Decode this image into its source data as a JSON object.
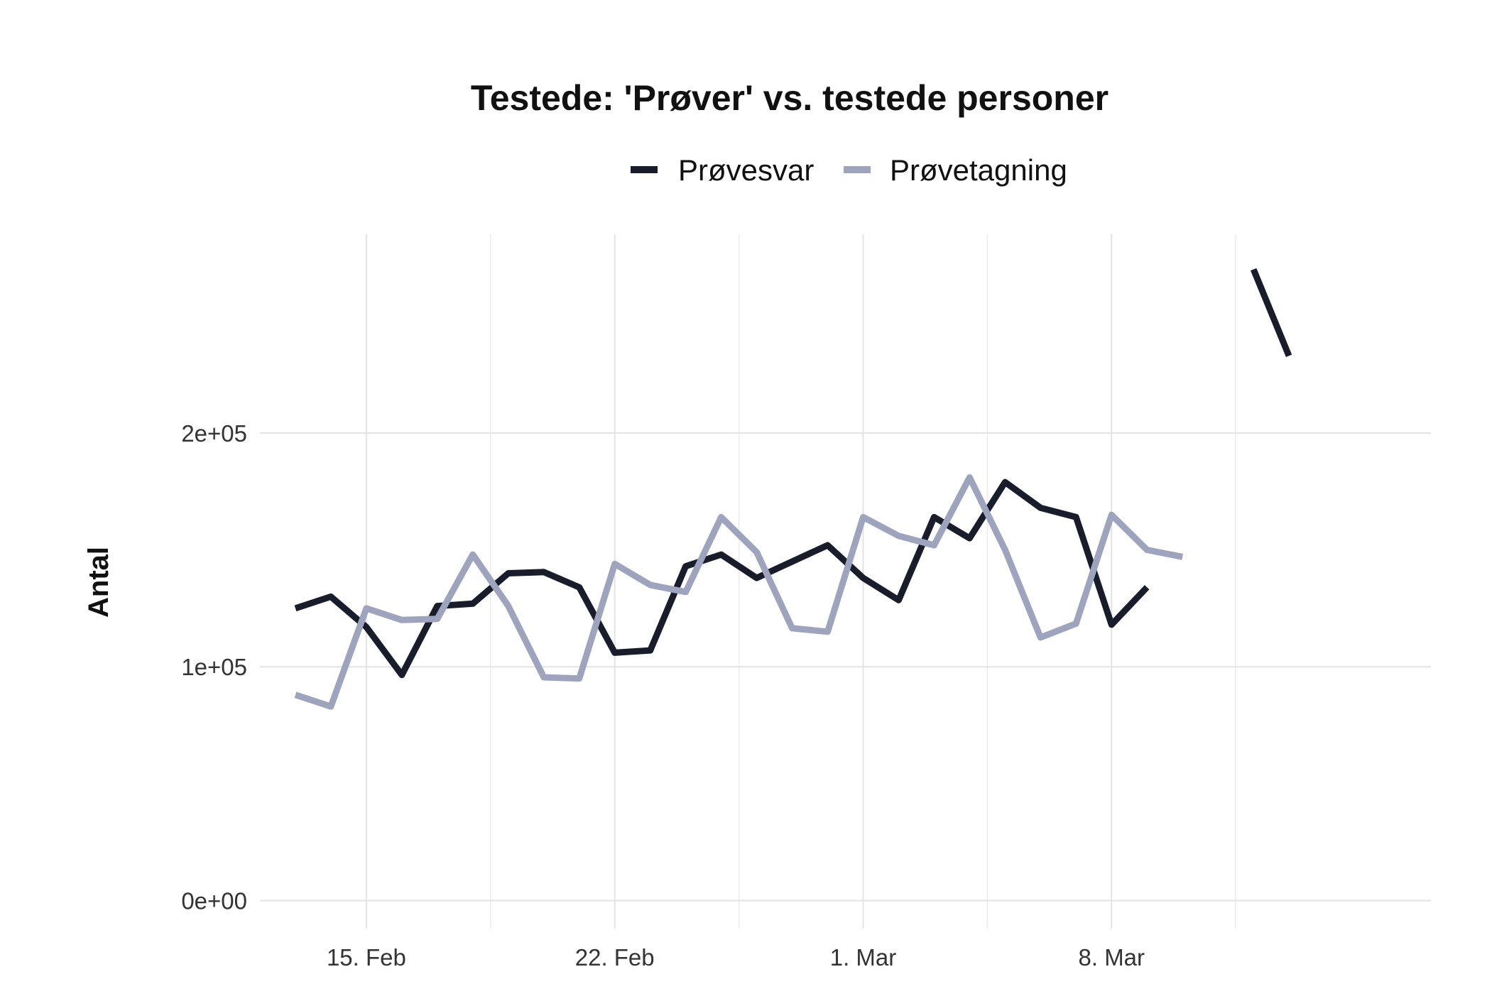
{
  "chart_data": {
    "type": "line",
    "title": "Testede: 'Prøver' vs. testede personer",
    "xlabel": "",
    "ylabel": "Antal",
    "x_type": "date",
    "x_ticks": [
      "2021-02-15",
      "2021-02-22",
      "2021-03-01",
      "2021-03-08"
    ],
    "x_tick_labels": [
      "15. Feb",
      "22. Feb",
      "1. Mar",
      "8. Mar"
    ],
    "xlim": [
      "2021-02-12",
      "2021-03-17"
    ],
    "y_ticks": [
      0,
      100000,
      200000
    ],
    "y_tick_labels": [
      "0e+00",
      "1e+05",
      "2e+05"
    ],
    "ylim": [
      -12000,
      285000
    ],
    "grid": true,
    "legend_position": "top",
    "series": [
      {
        "name": "Prøvesvar",
        "color": "#181c2b",
        "points": [
          {
            "x": "2021-02-13",
            "y": 125000
          },
          {
            "x": "2021-02-14",
            "y": 130000
          },
          {
            "x": "2021-02-15",
            "y": 117000
          },
          {
            "x": "2021-02-16",
            "y": 96500
          },
          {
            "x": "2021-02-17",
            "y": 126000
          },
          {
            "x": "2021-02-18",
            "y": 127000
          },
          {
            "x": "2021-02-19",
            "y": 140000
          },
          {
            "x": "2021-02-20",
            "y": 140500
          },
          {
            "x": "2021-02-21",
            "y": 134000
          },
          {
            "x": "2021-02-22",
            "y": 106000
          },
          {
            "x": "2021-02-23",
            "y": 107000
          },
          {
            "x": "2021-02-24",
            "y": 143000
          },
          {
            "x": "2021-02-25",
            "y": 148000
          },
          {
            "x": "2021-02-26",
            "y": 138000
          },
          {
            "x": "2021-02-27",
            "y": 145000
          },
          {
            "x": "2021-02-28",
            "y": 152000
          },
          {
            "x": "2021-03-01",
            "y": 138000
          },
          {
            "x": "2021-03-02",
            "y": 128500
          },
          {
            "x": "2021-03-03",
            "y": 164000
          },
          {
            "x": "2021-03-04",
            "y": 155000
          },
          {
            "x": "2021-03-05",
            "y": 179000
          },
          {
            "x": "2021-03-06",
            "y": 168000
          },
          {
            "x": "2021-03-07",
            "y": 164000
          },
          {
            "x": "2021-03-08",
            "y": 118000
          },
          {
            "x": "2021-03-09",
            "y": 134000
          },
          {
            "x": "2021-03-10",
            "y": null
          },
          {
            "x": "2021-03-11",
            "y": null
          },
          {
            "x": "2021-03-12",
            "y": 270000
          },
          {
            "x": "2021-03-13",
            "y": 233000
          }
        ]
      },
      {
        "name": "Prøvetagning",
        "color": "#9ea4bd",
        "points": [
          {
            "x": "2021-02-13",
            "y": 88000
          },
          {
            "x": "2021-02-14",
            "y": 83000
          },
          {
            "x": "2021-02-15",
            "y": 125000
          },
          {
            "x": "2021-02-16",
            "y": 120000
          },
          {
            "x": "2021-02-17",
            "y": 120500
          },
          {
            "x": "2021-02-18",
            "y": 148000
          },
          {
            "x": "2021-02-19",
            "y": 126000
          },
          {
            "x": "2021-02-20",
            "y": 95500
          },
          {
            "x": "2021-02-21",
            "y": 95000
          },
          {
            "x": "2021-02-22",
            "y": 144000
          },
          {
            "x": "2021-02-23",
            "y": 135000
          },
          {
            "x": "2021-02-24",
            "y": 132000
          },
          {
            "x": "2021-02-25",
            "y": 164000
          },
          {
            "x": "2021-02-26",
            "y": 149000
          },
          {
            "x": "2021-02-27",
            "y": 116500
          },
          {
            "x": "2021-02-28",
            "y": 115000
          },
          {
            "x": "2021-03-01",
            "y": 164000
          },
          {
            "x": "2021-03-02",
            "y": 156000
          },
          {
            "x": "2021-03-03",
            "y": 152000
          },
          {
            "x": "2021-03-04",
            "y": 181000
          },
          {
            "x": "2021-03-05",
            "y": 150000
          },
          {
            "x": "2021-03-06",
            "y": 112500
          },
          {
            "x": "2021-03-07",
            "y": 118500
          },
          {
            "x": "2021-03-08",
            "y": 165000
          },
          {
            "x": "2021-03-09",
            "y": 150000
          },
          {
            "x": "2021-03-10",
            "y": 147000
          }
        ]
      }
    ]
  }
}
